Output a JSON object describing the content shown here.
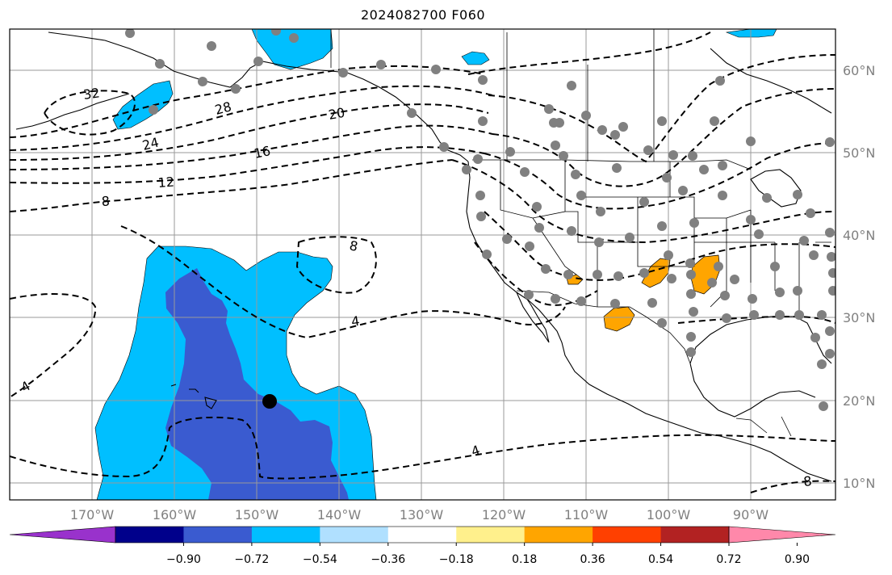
{
  "title": "2024082700 F060",
  "map": {
    "lat_labels": [
      "60°N",
      "50°N",
      "40°N",
      "30°N",
      "20°N",
      "10°N"
    ],
    "lon_labels": [
      "170°W",
      "160°W",
      "150°W",
      "140°W",
      "130°W",
      "120°W",
      "110°W",
      "100°W",
      "90°W"
    ],
    "contour_labels": [
      "32",
      "28",
      "24",
      "20",
      "16",
      "12",
      "8",
      "8",
      "4",
      "4",
      "4",
      "8"
    ],
    "shading_colors": {
      "light_blue": "#00bfff",
      "dark_blue": "#3a5bd0",
      "orange": "#ffa500"
    },
    "gridlines": true,
    "contour_style": "dashed black",
    "station_marker_color": "#808080"
  },
  "colorbar": {
    "labels": [
      "−0.90",
      "−0.72",
      "−0.54",
      "−0.36",
      "−0.18",
      "0.18",
      "0.36",
      "0.54",
      "0.72",
      "0.90"
    ],
    "colors": [
      "#9932cc",
      "#00008b",
      "#3a5bd0",
      "#00bfff",
      "#b0e0ff",
      "#ffffff",
      "#fff08c",
      "#ffa500",
      "#ff4000",
      "#b22222",
      "#ff88aa"
    ]
  }
}
